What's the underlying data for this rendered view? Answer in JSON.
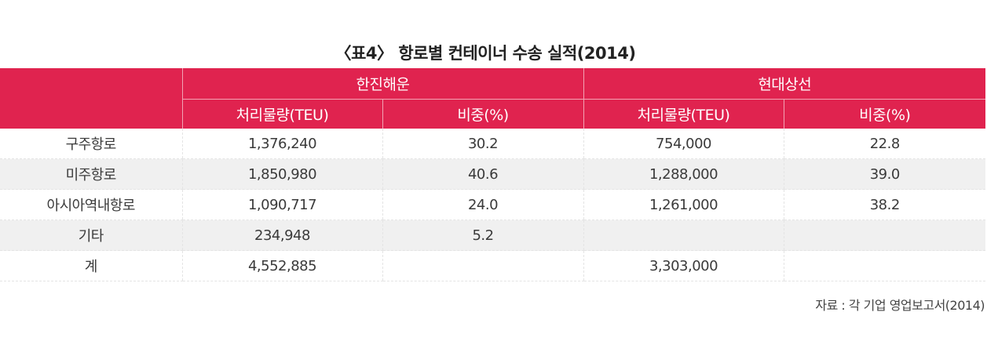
{
  "title": "〈표4〉 항로별 컨테이너 수송 실적(2014)",
  "header": {
    "company1": "한진해운",
    "company2": "현대상선",
    "sub": {
      "volume1": "처리물량(TEU)",
      "share1": "비중(%)",
      "volume2": "처리물량(TEU)",
      "share2": "비중(%)"
    }
  },
  "rows": [
    {
      "route": "구주항로",
      "v1": "1,376,240",
      "s1": "30.2",
      "v2": "754,000",
      "s2": "22.8"
    },
    {
      "route": "미주항로",
      "v1": "1,850,980",
      "s1": "40.6",
      "v2": "1,288,000",
      "s2": "39.0"
    },
    {
      "route": "아시아역내항로",
      "v1": "1,090,717",
      "s1": "24.0",
      "v2": "1,261,000",
      "s2": "38.2"
    },
    {
      "route": "기타",
      "v1": "234,948",
      "s1": "5.2",
      "v2": "",
      "s2": ""
    },
    {
      "route": "계",
      "v1": "4,552,885",
      "s1": "",
      "v2": "3,303,000",
      "s2": ""
    }
  ],
  "source": "자료 : 각 기업 영업보고서(2014)",
  "colors": {
    "header_bg": "#e0234f",
    "row_shade": "#f0f0f0"
  }
}
